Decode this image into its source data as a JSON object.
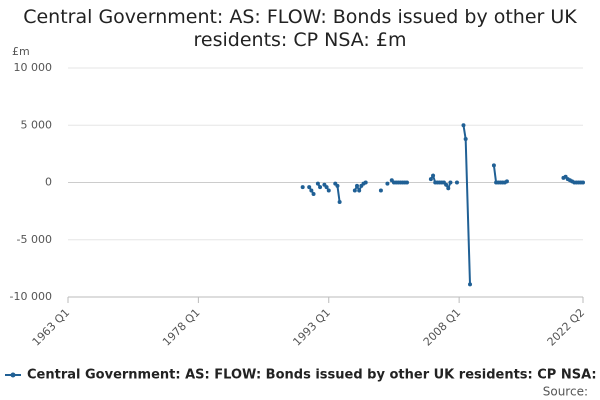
{
  "chart_data": {
    "type": "line",
    "title": "Central Government: AS: FLOW: Bonds issued by other UK residents: CP NSA: £m",
    "ylabel": "£m",
    "source": "Source:",
    "x": [
      1990.0,
      1990.25,
      1990.75,
      1991.0,
      1991.25,
      1991.5,
      1991.75,
      1992.0,
      1992.25,
      1992.5,
      1992.75,
      1993.0,
      1993.25,
      1993.75,
      1994.0,
      1994.25,
      1994.5,
      1996.0,
      1996.25,
      1996.5,
      1996.75,
      1997.0,
      1997.25,
      1997.5,
      1999.0,
      1999.25,
      1999.75,
      2000.0,
      2000.25,
      2000.5,
      2000.75,
      2001.0,
      2001.25,
      2001.5,
      2001.75,
      2002.0,
      2002.25,
      2004.75,
      2005.0,
      2005.25,
      2005.5,
      2005.75,
      2006.0,
      2006.25,
      2006.5,
      2006.75,
      2007.0,
      2007.25,
      2007.75,
      2008.0,
      2008.5,
      2008.75,
      2009.25,
      2009.5,
      2012.0,
      2012.25,
      2012.5,
      2012.75,
      2013.0,
      2013.25,
      2013.5,
      2013.75,
      2020.0,
      2020.25,
      2020.5,
      2020.75,
      2021.0,
      2021.25,
      2021.5,
      2021.75,
      2022.0,
      2022.25
    ],
    "series": [
      {
        "name": "Central Government: AS: FLOW: Bonds issued by other UK residents: CP NSA: £m",
        "color": "#206095",
        "values": [
          -400,
          null,
          -400,
          -700,
          -1000,
          null,
          -100,
          -400,
          null,
          -200,
          -400,
          -700,
          null,
          -100,
          -300,
          -1700,
          null,
          -700,
          -300,
          -700,
          -300,
          -100,
          0,
          null,
          -700,
          null,
          -100,
          null,
          200,
          0,
          0,
          0,
          0,
          0,
          0,
          0,
          null,
          300,
          600,
          0,
          0,
          0,
          0,
          0,
          -200,
          -500,
          0,
          null,
          0,
          null,
          5000,
          3800,
          -8900,
          null,
          1500,
          0,
          0,
          0,
          0,
          0,
          100,
          null,
          400,
          500,
          300,
          200,
          100,
          0,
          0,
          0,
          0,
          0
        ]
      }
    ],
    "xlim": [
      1963,
      2022.25
    ],
    "xticks": [
      {
        "value": 1963,
        "label": "1963 Q1"
      },
      {
        "value": 1978,
        "label": "1978 Q1"
      },
      {
        "value": 1993,
        "label": "1993 Q1"
      },
      {
        "value": 2008,
        "label": "2008 Q1"
      },
      {
        "value": 2022.25,
        "label": "2022 Q2"
      }
    ],
    "ylim": [
      -10000,
      10000
    ],
    "yticks": [
      {
        "value": 10000,
        "label": "10 000"
      },
      {
        "value": 5000,
        "label": "5 000"
      },
      0,
      {
        "value": -5000,
        "label": "-5 000"
      },
      {
        "value": -10000,
        "label": "-10 000"
      }
    ],
    "grid": true
  }
}
